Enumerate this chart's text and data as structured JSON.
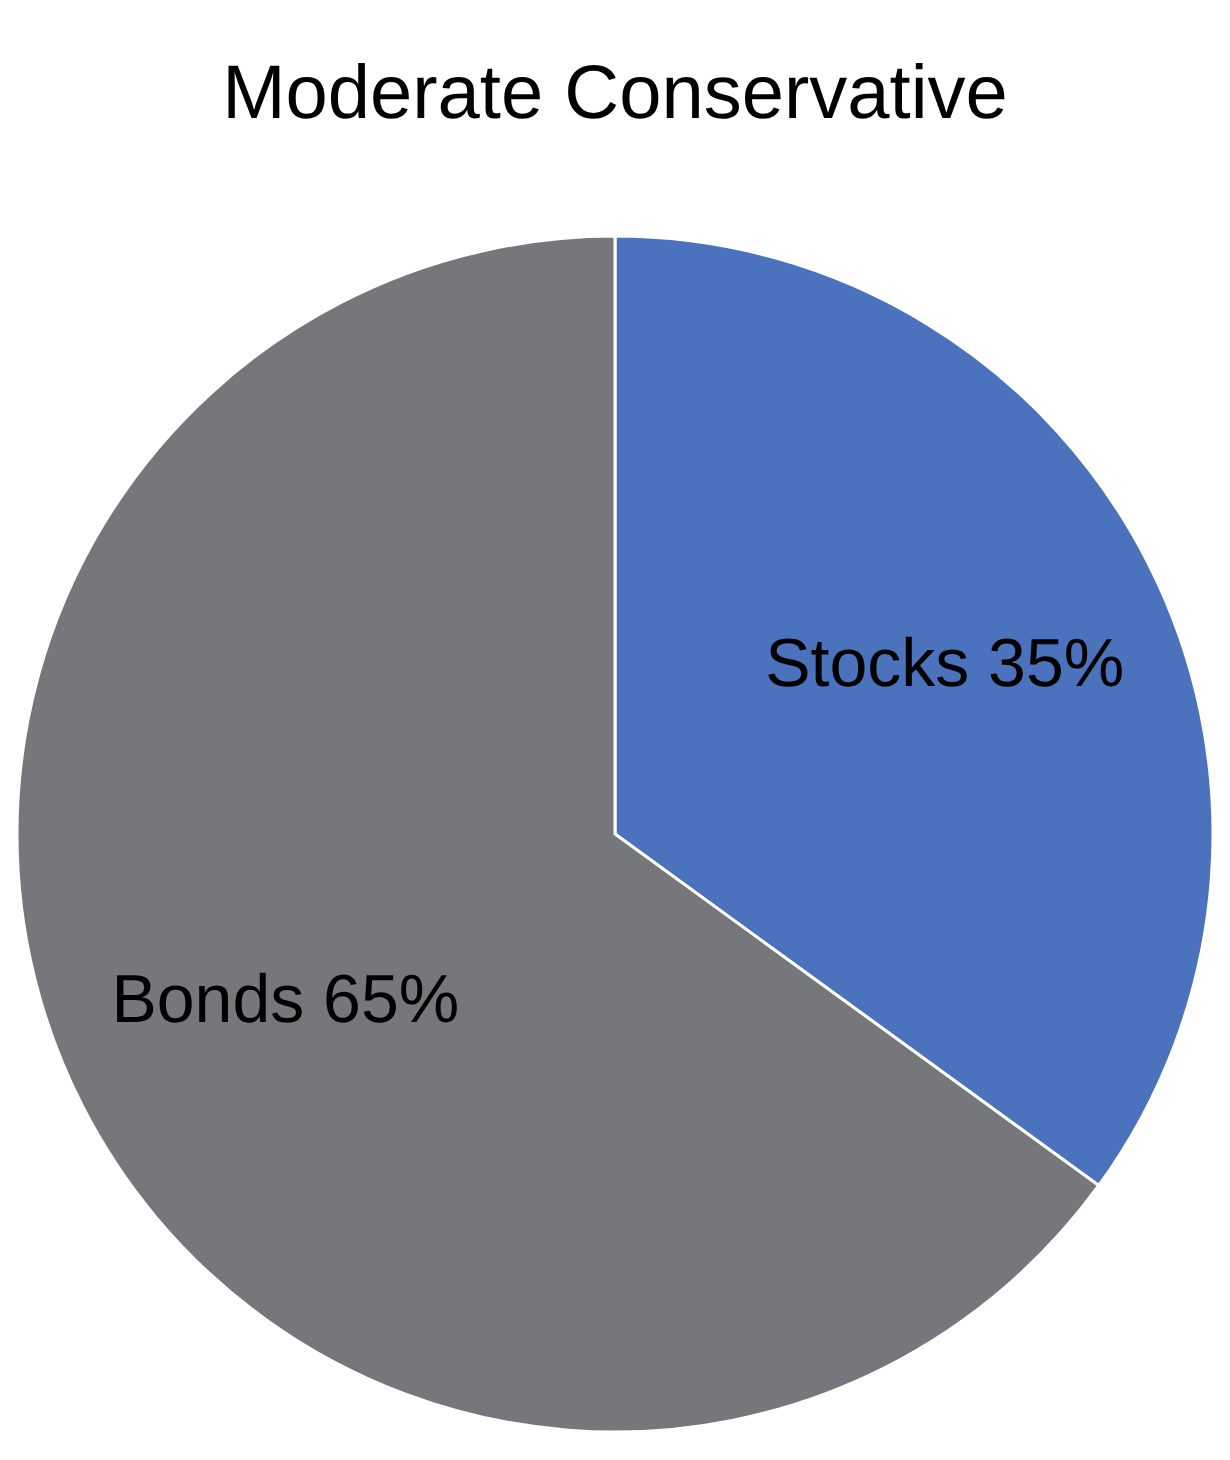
{
  "chart_data": {
    "type": "pie",
    "title": "Moderate Conservative",
    "categories": [
      "Stocks",
      "Bonds"
    ],
    "values": [
      35,
      65
    ],
    "colors": [
      "#4a72bd",
      "#76777b"
    ],
    "value_labels": [
      "35%",
      "65%"
    ]
  }
}
